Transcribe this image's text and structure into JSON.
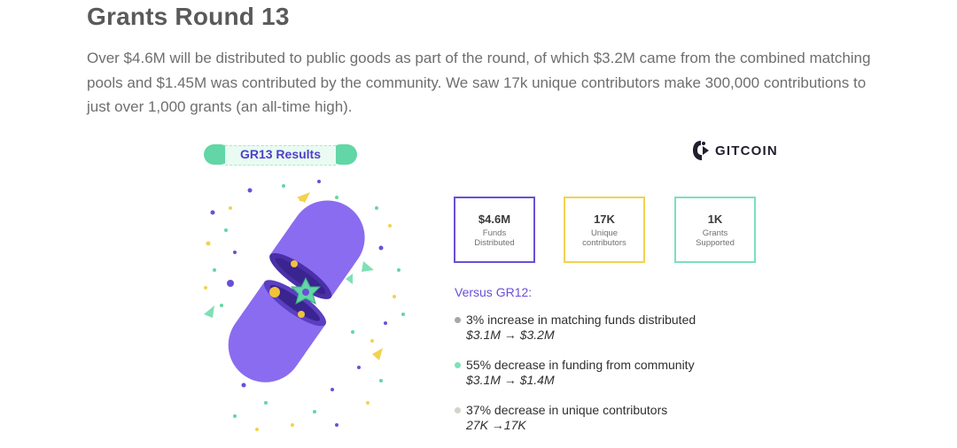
{
  "header": {
    "title": "Grants Round 13",
    "intro": "Over $4.6M will be distributed to public goods as part of the round, of which $3.2M came from the combined matching pools and $1.45M was contributed by the community. We saw 17k unique contributors make 300,000 contributions to just over 1,000 grants (an all-time high)."
  },
  "infographic": {
    "badge": "GR13 Results",
    "logo_text": "GITCOIN",
    "stats": [
      {
        "value": "$4.6M",
        "label1": "Funds",
        "label2": "Distributed",
        "color": "#6a4fd6"
      },
      {
        "value": "17K",
        "label1": "Unique",
        "label2": "contributors",
        "color": "#f2d24f"
      },
      {
        "value": "1K",
        "label1": "Grants",
        "label2": "Supported",
        "color": "#7ce0bd"
      }
    ],
    "versus_heading": "Versus GR12:",
    "changes": [
      {
        "text": "3% increase in matching funds distributed",
        "detail": "$3.1M → $3.2M",
        "dot_color": "#a7a7a7"
      },
      {
        "text": "55% decrease in funding from community",
        "detail": "$3.1M → $1.4M",
        "dot_color": "#7fe0b5"
      },
      {
        "text": "37% decrease in unique contributors",
        "detail": "27K →17K",
        "dot_color": "#d1d4c8"
      }
    ]
  },
  "colors": {
    "purple": "#6a4fd6",
    "capsule": "#8a6cf0",
    "capsule_dark": "#5a3fc0",
    "green": "#62d6a6",
    "yellow": "#f2d24f"
  }
}
